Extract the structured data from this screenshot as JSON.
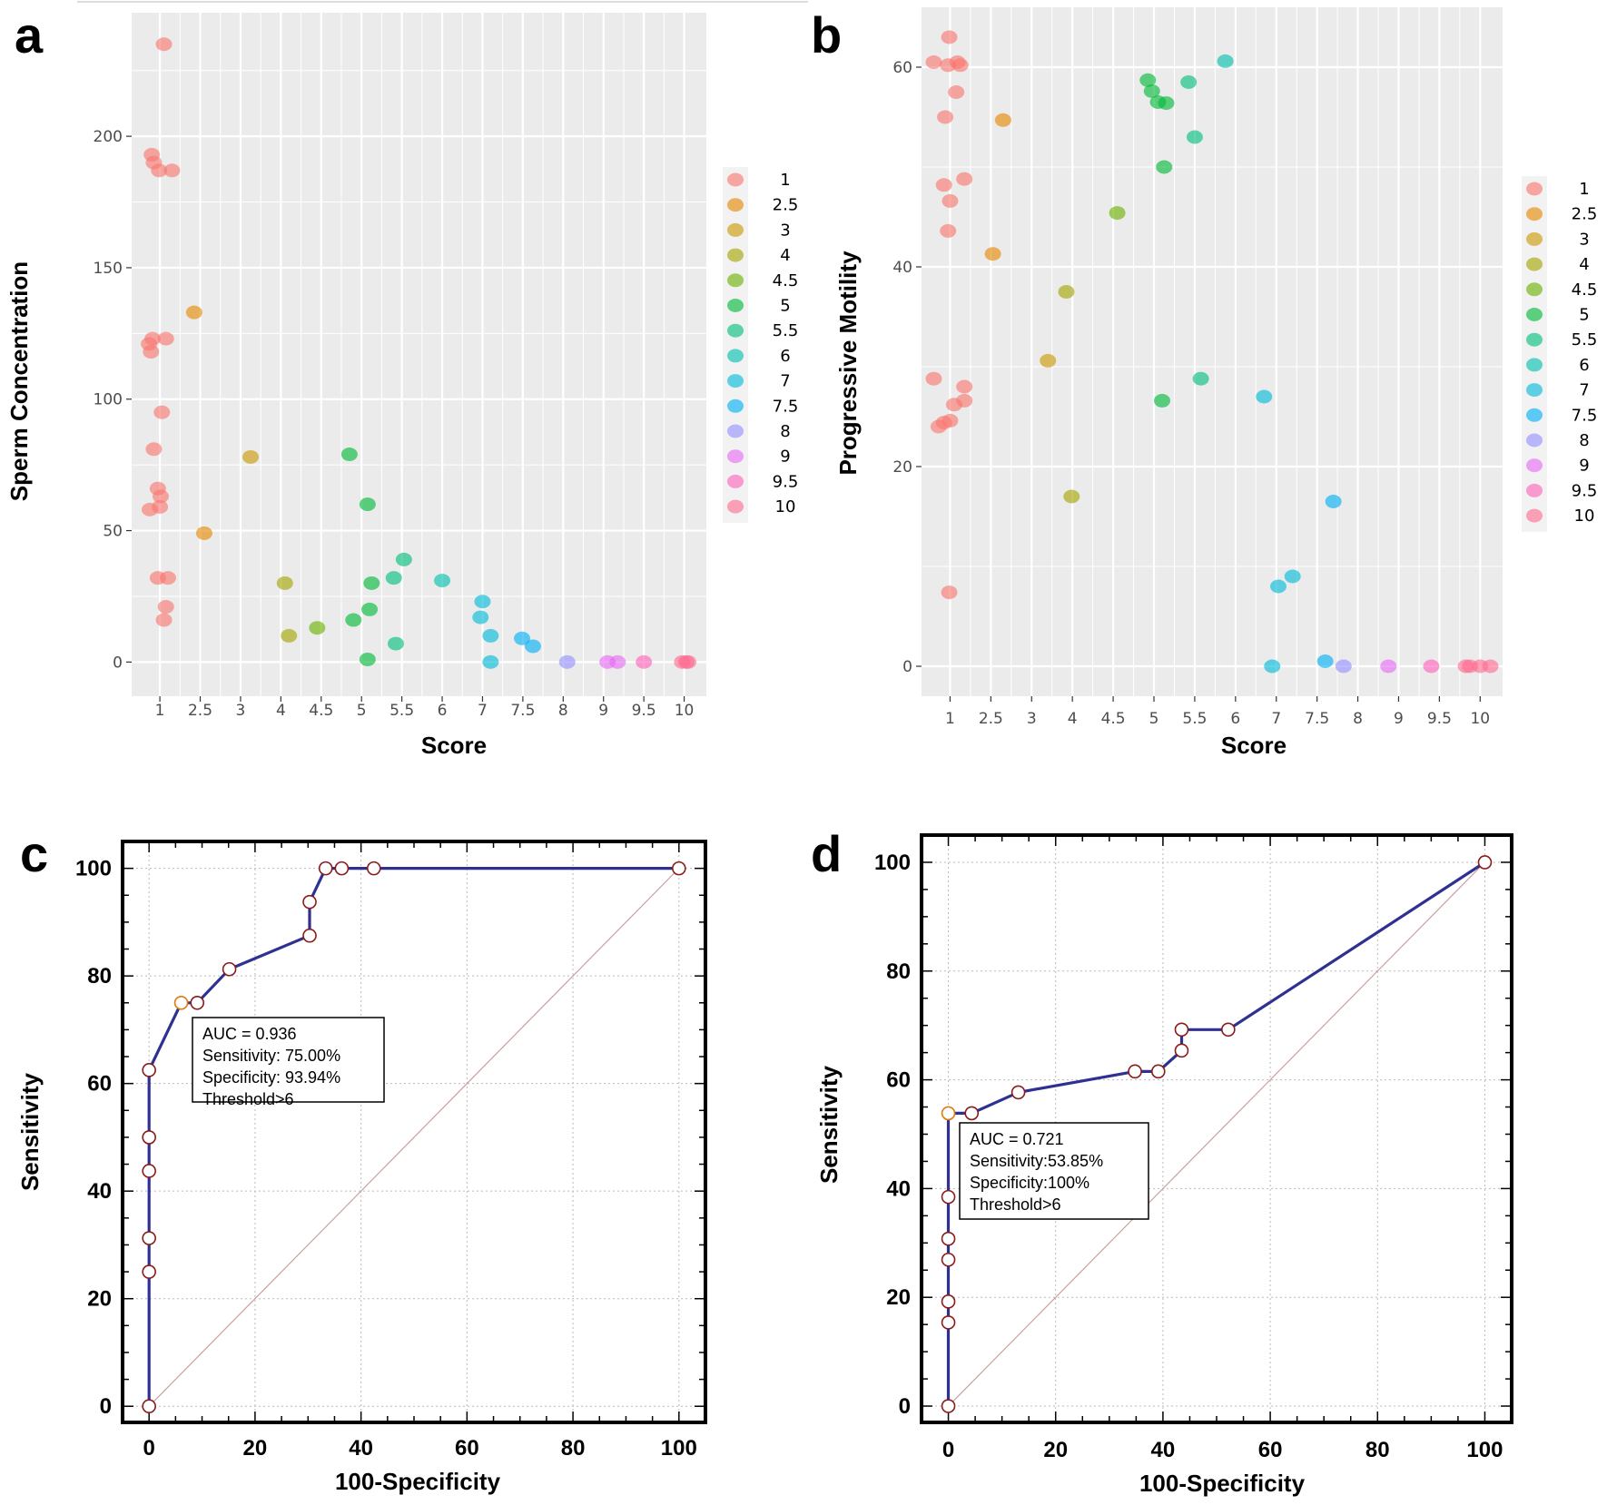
{
  "chart_data": [
    {
      "panel": "a",
      "type": "scatter",
      "xlabel": "Score",
      "ylabel": "Sperm Concentration",
      "x_categories": [
        "1",
        "2.5",
        "3",
        "4",
        "4.5",
        "5",
        "5.5",
        "6",
        "7",
        "7.5",
        "8",
        "9",
        "9.5",
        "10"
      ],
      "yticks": [
        0,
        50,
        100,
        150,
        200
      ],
      "ylim": [
        -13,
        247
      ],
      "legend": {
        "position": "right",
        "entries": [
          "1",
          "2.5",
          "3",
          "4",
          "4.5",
          "5",
          "5.5",
          "6",
          "7",
          "7.5",
          "8",
          "9",
          "9.5",
          "10"
        ]
      },
      "points": [
        {
          "score": "1",
          "x": 1.1,
          "y": 235
        },
        {
          "score": "1",
          "x": 0.8,
          "y": 193
        },
        {
          "score": "1",
          "x": 0.85,
          "y": 190
        },
        {
          "score": "1",
          "x": 0.98,
          "y": 187
        },
        {
          "score": "1",
          "x": 1.3,
          "y": 187
        },
        {
          "score": "1",
          "x": 0.82,
          "y": 123
        },
        {
          "score": "1",
          "x": 1.15,
          "y": 123
        },
        {
          "score": "1",
          "x": 0.73,
          "y": 121
        },
        {
          "score": "1",
          "x": 0.78,
          "y": 118
        },
        {
          "score": "1",
          "x": 1.05,
          "y": 95
        },
        {
          "score": "1",
          "x": 0.85,
          "y": 81
        },
        {
          "score": "1",
          "x": 0.95,
          "y": 66
        },
        {
          "score": "1",
          "x": 1.02,
          "y": 63
        },
        {
          "score": "1",
          "x": 1.0,
          "y": 59
        },
        {
          "score": "1",
          "x": 0.75,
          "y": 58
        },
        {
          "score": "1",
          "x": 0.95,
          "y": 32
        },
        {
          "score": "1",
          "x": 1.2,
          "y": 32
        },
        {
          "score": "1",
          "x": 1.15,
          "y": 21
        },
        {
          "score": "1",
          "x": 1.1,
          "y": 16
        },
        {
          "score": "2.5",
          "x": 1.85,
          "y": 133
        },
        {
          "score": "2.5",
          "x": 2.1,
          "y": 49
        },
        {
          "score": "3",
          "x": 3.25,
          "y": 78
        },
        {
          "score": "4",
          "x": 4.1,
          "y": 30
        },
        {
          "score": "4",
          "x": 4.2,
          "y": 10
        },
        {
          "score": "4.5",
          "x": 4.9,
          "y": 13
        },
        {
          "score": "5",
          "x": 5.7,
          "y": 79
        },
        {
          "score": "5",
          "x": 6.15,
          "y": 60
        },
        {
          "score": "5",
          "x": 6.25,
          "y": 30
        },
        {
          "score": "5",
          "x": 5.8,
          "y": 16
        },
        {
          "score": "5",
          "x": 6.2,
          "y": 20
        },
        {
          "score": "5",
          "x": 6.15,
          "y": 1
        },
        {
          "score": "5.5",
          "x": 6.8,
          "y": 32
        },
        {
          "score": "5.5",
          "x": 7.05,
          "y": 39
        },
        {
          "score": "5.5",
          "x": 6.85,
          "y": 7
        },
        {
          "score": "6",
          "x": 8.0,
          "y": 31
        },
        {
          "score": "7",
          "x": 9.0,
          "y": 23
        },
        {
          "score": "7",
          "x": 8.95,
          "y": 17
        },
        {
          "score": "7",
          "x": 9.2,
          "y": 10
        },
        {
          "score": "7",
          "x": 9.2,
          "y": 0
        },
        {
          "score": "7.5",
          "x": 9.98,
          "y": 9
        },
        {
          "score": "7.5",
          "x": 10.25,
          "y": 6
        },
        {
          "score": "8",
          "x": 11.1,
          "y": 0
        },
        {
          "score": "9",
          "x": 12.1,
          "y": 0
        },
        {
          "score": "9",
          "x": 12.35,
          "y": 0
        },
        {
          "score": "9.5",
          "x": 13.0,
          "y": 0
        },
        {
          "score": "10",
          "x": 13.95,
          "y": 0
        },
        {
          "score": "10",
          "x": 14.05,
          "y": 0
        },
        {
          "score": "10",
          "x": 14.1,
          "y": 0
        }
      ]
    },
    {
      "panel": "b",
      "type": "scatter",
      "xlabel": "Score",
      "ylabel": "Progressive Motility",
      "x_categories": [
        "1",
        "2.5",
        "3",
        "4",
        "4.5",
        "5",
        "5.5",
        "6",
        "7",
        "7.5",
        "8",
        "9",
        "9.5",
        "10"
      ],
      "yticks": [
        0,
        20,
        40,
        60
      ],
      "ylim": [
        -3,
        66
      ],
      "legend": {
        "position": "right",
        "entries": [
          "1",
          "2.5",
          "3",
          "4",
          "4.5",
          "5",
          "5.5",
          "6",
          "7",
          "7.5",
          "8",
          "9",
          "9.5",
          "10"
        ]
      },
      "points": [
        {
          "score": "1",
          "x": 0.98,
          "y": 63
        },
        {
          "score": "1",
          "x": 0.6,
          "y": 60.5
        },
        {
          "score": "1",
          "x": 0.95,
          "y": 60.2
        },
        {
          "score": "1",
          "x": 1.18,
          "y": 60.5
        },
        {
          "score": "1",
          "x": 1.25,
          "y": 60.2
        },
        {
          "score": "1",
          "x": 1.15,
          "y": 57.5
        },
        {
          "score": "1",
          "x": 0.88,
          "y": 55
        },
        {
          "score": "1",
          "x": 1.35,
          "y": 48.8
        },
        {
          "score": "1",
          "x": 0.85,
          "y": 48.2
        },
        {
          "score": "1",
          "x": 1.0,
          "y": 46.6
        },
        {
          "score": "1",
          "x": 0.95,
          "y": 43.6
        },
        {
          "score": "1",
          "x": 0.6,
          "y": 28.8
        },
        {
          "score": "1",
          "x": 1.35,
          "y": 28
        },
        {
          "score": "1",
          "x": 1.35,
          "y": 26.6
        },
        {
          "score": "1",
          "x": 1.1,
          "y": 26.2
        },
        {
          "score": "1",
          "x": 1.0,
          "y": 24.6
        },
        {
          "score": "1",
          "x": 0.85,
          "y": 24.4
        },
        {
          "score": "1",
          "x": 0.72,
          "y": 24
        },
        {
          "score": "1",
          "x": 0.98,
          "y": 7.4
        },
        {
          "score": "2.5",
          "x": 2.3,
          "y": 54.7
        },
        {
          "score": "2.5",
          "x": 2.05,
          "y": 41.3
        },
        {
          "score": "3",
          "x": 3.4,
          "y": 30.6
        },
        {
          "score": "4",
          "x": 3.85,
          "y": 37.5
        },
        {
          "score": "4",
          "x": 3.98,
          "y": 17
        },
        {
          "score": "4.5",
          "x": 5.1,
          "y": 45.4
        },
        {
          "score": "5",
          "x": 5.85,
          "y": 58.7
        },
        {
          "score": "5",
          "x": 5.95,
          "y": 57.6
        },
        {
          "score": "5",
          "x": 6.1,
          "y": 56.5
        },
        {
          "score": "5",
          "x": 6.3,
          "y": 56.4
        },
        {
          "score": "5",
          "x": 6.25,
          "y": 50
        },
        {
          "score": "5",
          "x": 6.2,
          "y": 26.6
        },
        {
          "score": "5.5",
          "x": 6.85,
          "y": 58.5
        },
        {
          "score": "5.5",
          "x": 7.0,
          "y": 53
        },
        {
          "score": "5.5",
          "x": 7.15,
          "y": 28.8
        },
        {
          "score": "6",
          "x": 7.75,
          "y": 60.6
        },
        {
          "score": "7",
          "x": 8.7,
          "y": 27
        },
        {
          "score": "7",
          "x": 9.05,
          "y": 8.0
        },
        {
          "score": "7",
          "x": 9.4,
          "y": 9.0
        },
        {
          "score": "7",
          "x": 8.9,
          "y": 0
        },
        {
          "score": "7.5",
          "x": 10.4,
          "y": 16.5
        },
        {
          "score": "7.5",
          "x": 10.2,
          "y": 0.5
        },
        {
          "score": "8",
          "x": 10.65,
          "y": 0
        },
        {
          "score": "9",
          "x": 11.75,
          "y": 0
        },
        {
          "score": "9.5",
          "x": 12.8,
          "y": 0
        },
        {
          "score": "10",
          "x": 13.65,
          "y": 0
        },
        {
          "score": "10",
          "x": 13.75,
          "y": 0
        },
        {
          "score": "10",
          "x": 14.0,
          "y": 0
        },
        {
          "score": "10",
          "x": 14.25,
          "y": 0
        }
      ]
    },
    {
      "panel": "c",
      "type": "line",
      "xlabel": "100-Specificity",
      "ylabel": "Sensitivity",
      "xlim": [
        -5,
        105
      ],
      "ylim": [
        -3,
        105
      ],
      "xticks": [
        0,
        20,
        40,
        60,
        80,
        100
      ],
      "yticks": [
        0,
        20,
        40,
        60,
        80,
        100
      ],
      "roc": [
        [
          0,
          0
        ],
        [
          0,
          25
        ],
        [
          0,
          31.25
        ],
        [
          0,
          43.75
        ],
        [
          0,
          50
        ],
        [
          0,
          62.5
        ],
        [
          6.06,
          75
        ],
        [
          9.09,
          75
        ],
        [
          15.15,
          81.25
        ],
        [
          30.3,
          87.5
        ],
        [
          30.3,
          93.75
        ],
        [
          33.33,
          100
        ],
        [
          36.36,
          100
        ],
        [
          42.42,
          100
        ],
        [
          100,
          100
        ]
      ],
      "optimal_point": [
        6.06,
        75
      ],
      "annotation": [
        "AUC = 0.936",
        "Sensitivity: 75.00%",
        "Specificity: 93.94%",
        "Threshold>6"
      ]
    },
    {
      "panel": "d",
      "type": "line",
      "xlabel": "100-Specificity",
      "ylabel": "Sensitivity",
      "xlim": [
        -5,
        105
      ],
      "ylim": [
        -3,
        105
      ],
      "xticks": [
        0,
        20,
        40,
        60,
        80,
        100
      ],
      "yticks": [
        0,
        20,
        40,
        60,
        80,
        100
      ],
      "roc": [
        [
          0,
          0
        ],
        [
          0,
          15.38
        ],
        [
          0,
          19.23
        ],
        [
          0,
          26.92
        ],
        [
          0,
          30.77
        ],
        [
          0,
          38.46
        ],
        [
          0,
          53.85
        ],
        [
          4.35,
          53.85
        ],
        [
          13.04,
          57.69
        ],
        [
          34.78,
          61.54
        ],
        [
          39.13,
          61.54
        ],
        [
          43.48,
          65.38
        ],
        [
          43.48,
          69.23
        ],
        [
          52.17,
          69.23
        ],
        [
          100,
          100
        ]
      ],
      "optimal_point": [
        0,
        53.85
      ],
      "annotation": [
        "AUC = 0.721",
        "Sensitivity:53.85%",
        "Specificity:100%",
        "Threshold>6"
      ]
    }
  ],
  "colors": {
    "score_palette": {
      "1": "#F8766D",
      "2.5": "#E58700",
      "3": "#C99800",
      "4": "#A3A500",
      "4.5": "#6BB100",
      "5": "#00BA38",
      "5.5": "#00BF7D",
      "6": "#00C0AF",
      "7": "#00BCD8",
      "7.5": "#00B0F6",
      "8": "#9590FF",
      "9": "#E76BF3",
      "9.5": "#FF62BC",
      "10": "#FF6C91"
    },
    "panel_bg": "#EBEBEB",
    "grid": "#FFFFFF",
    "roc_line": "#2E3192",
    "marker_stroke": "#8B1A1A",
    "optimal_stroke": "#E07A10",
    "diagonal": "#C9A0A0"
  }
}
